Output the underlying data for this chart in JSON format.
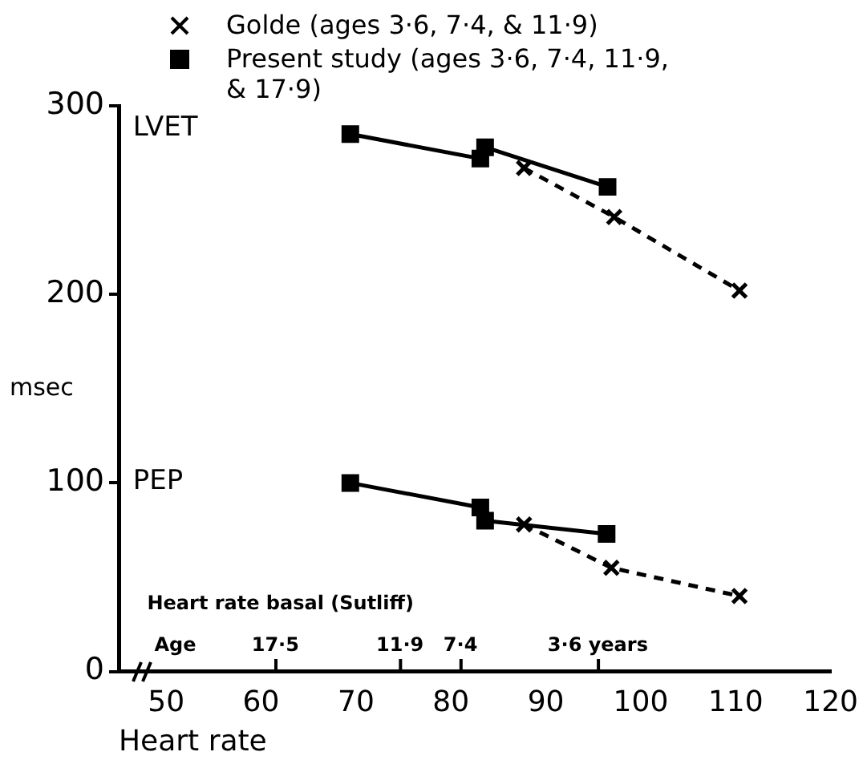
{
  "chart_data": {
    "type": "line",
    "ylabel": "msec",
    "xlabel": "Heart rate",
    "xlim": [
      45,
      120
    ],
    "xticks": [
      50,
      60,
      70,
      80,
      90,
      100,
      110,
      120
    ],
    "ylim": [
      0,
      300
    ],
    "yticks": [
      0,
      100,
      200,
      300
    ],
    "series": [
      {
        "name": "Golde (ages 3·6, 7·4, & 11·9)",
        "color": "#000000",
        "marker": "cross",
        "line_style": "dashed",
        "x": [
          87.7,
          97.2,
          110.4
        ],
        "values": [
          267,
          241,
          202
        ]
      },
      {
        "name": "Present study (ages 3·6, 7·4, 11·9, & 17·9)",
        "color": "#000000",
        "marker": "square",
        "line_style": "solid",
        "x": [
          69.4,
          83.1,
          83.6,
          96.5
        ],
        "values": [
          285,
          272,
          278,
          257
        ]
      },
      {
        "color": "#000000",
        "marker": "cross",
        "line_style": "dashed",
        "x": [
          87.7,
          96.9,
          110.4
        ],
        "values": [
          78,
          55,
          40
        ]
      },
      {
        "color": "#000000",
        "marker": "square",
        "line_style": "solid",
        "x": [
          69.4,
          83.1,
          83.6,
          96.4
        ],
        "values": [
          100,
          87,
          80,
          73
        ]
      }
    ],
    "annotations": [
      "LVET",
      "PEP",
      "Heart rate basal (Sutliff)",
      "Age",
      "17·5",
      "11·9",
      "7·4",
      "3·6 years"
    ],
    "legend": "top",
    "grid": false
  }
}
